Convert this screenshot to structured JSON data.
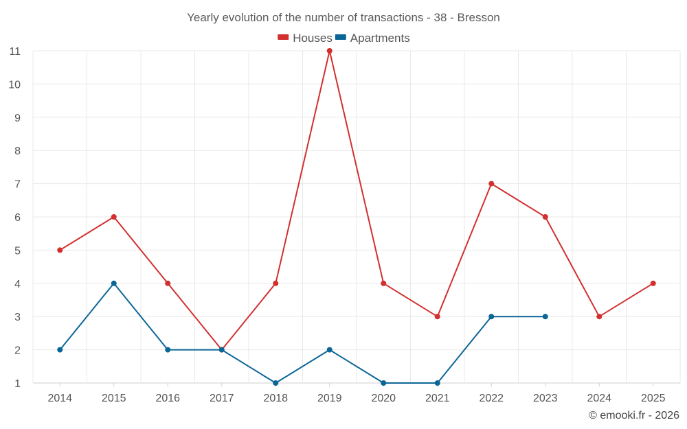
{
  "chart_data": {
    "type": "line",
    "title": "Yearly evolution of the number of transactions - 38 - Bresson",
    "categories": [
      "2014",
      "2015",
      "2016",
      "2017",
      "2018",
      "2019",
      "2020",
      "2021",
      "2022",
      "2023",
      "2024",
      "2025"
    ],
    "series": [
      {
        "name": "Houses",
        "color": "#d32f2f",
        "values": [
          5,
          6,
          4,
          2,
          4,
          11,
          4,
          3,
          7,
          6,
          3,
          4
        ]
      },
      {
        "name": "Apartments",
        "color": "#0a6697",
        "values": [
          2,
          4,
          2,
          2,
          1,
          2,
          1,
          1,
          3,
          3,
          null,
          null
        ]
      }
    ],
    "yticks": [
      "1",
      "2",
      "3",
      "4",
      "5",
      "6",
      "7",
      "8",
      "9",
      "10",
      "11"
    ],
    "ylim": [
      1,
      11
    ],
    "xlabel": "",
    "ylabel": "",
    "grid": true,
    "legend": "top-center"
  },
  "credit": "© emooki.fr - 2026"
}
